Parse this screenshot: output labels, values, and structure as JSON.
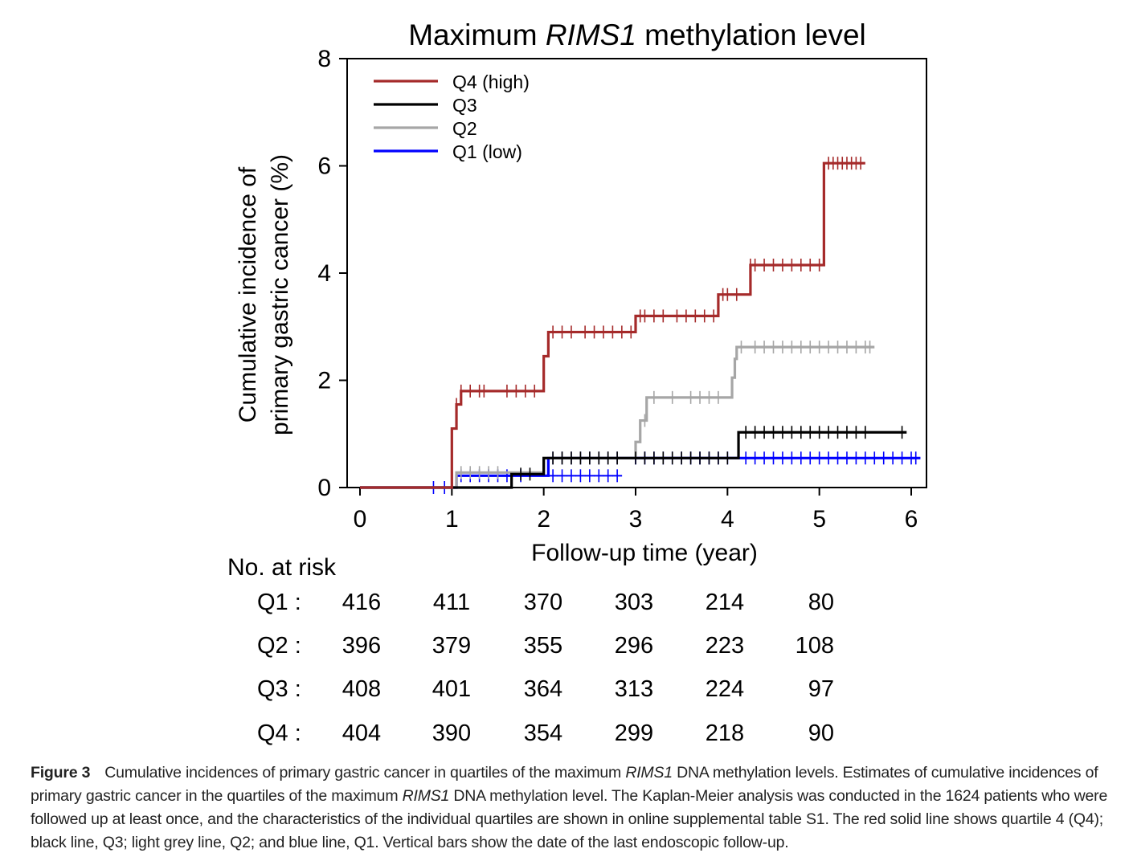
{
  "chart_data": {
    "type": "line",
    "title": {
      "prefix": "Maximum ",
      "gene": "RIMS1",
      "suffix": " methylation level"
    },
    "xlabel": "Follow-up time (year)",
    "ylabel_line1": "Cumulative incidence of",
    "ylabel_line2": "primary gastric cancer (%)",
    "xlim": [
      0,
      6
    ],
    "ylim": [
      0,
      8
    ],
    "xticks": [
      0,
      1,
      2,
      3,
      4,
      5,
      6
    ],
    "yticks": [
      0,
      2,
      4,
      6,
      8
    ],
    "grid": false,
    "legend_position": "top-left",
    "series": [
      {
        "name": "Q4 (high)",
        "color": "#a52a2a",
        "x": [
          0,
          0.95,
          1.0,
          1.05,
          1.1,
          1.95,
          2.0,
          2.05,
          2.9,
          3.0,
          3.9,
          4.25,
          5.05,
          5.5
        ],
        "y": [
          0,
          0,
          1.1,
          1.55,
          1.8,
          1.8,
          2.45,
          2.9,
          2.9,
          3.2,
          3.6,
          4.15,
          6.05,
          6.05
        ],
        "censor_x": [
          1.05,
          1.1,
          1.2,
          1.3,
          1.35,
          1.6,
          1.7,
          1.8,
          1.9,
          2.1,
          2.2,
          2.3,
          2.45,
          2.55,
          2.65,
          2.75,
          2.85,
          2.95,
          3.05,
          3.1,
          3.2,
          3.3,
          3.45,
          3.55,
          3.65,
          3.75,
          3.85,
          3.95,
          4.0,
          4.1,
          4.25,
          4.3,
          4.4,
          4.5,
          4.6,
          4.7,
          4.8,
          4.9,
          5.0,
          5.1,
          5.15,
          5.2,
          5.25,
          5.3,
          5.35,
          5.4,
          5.45
        ]
      },
      {
        "name": "Q3",
        "color": "#000000",
        "x": [
          0,
          1.62,
          1.65,
          1.95,
          2.0,
          4.1,
          4.12,
          5.95
        ],
        "y": [
          0,
          0,
          0.25,
          0.25,
          0.55,
          0.55,
          1.03,
          1.03
        ],
        "censor_x": [
          1.75,
          1.85,
          2.1,
          2.2,
          2.3,
          2.4,
          2.5,
          2.6,
          2.7,
          2.8,
          3.0,
          3.1,
          3.2,
          3.3,
          3.4,
          3.5,
          3.6,
          3.7,
          3.8,
          3.9,
          4.0,
          4.2,
          4.3,
          4.4,
          4.5,
          4.6,
          4.7,
          4.8,
          4.9,
          5.0,
          5.1,
          5.2,
          5.3,
          5.4,
          5.5,
          5.9
        ]
      },
      {
        "name": "Q2",
        "color": "#a6a6a6",
        "x": [
          0,
          1.02,
          1.05,
          1.9,
          2.0,
          2.92,
          3.0,
          3.05,
          3.12,
          4.0,
          4.05,
          4.08,
          4.1,
          5.6
        ],
        "y": [
          0,
          0,
          0.28,
          0.28,
          0.55,
          0.55,
          0.85,
          1.25,
          1.68,
          1.68,
          2.05,
          2.4,
          2.62,
          2.62
        ],
        "censor_x": [
          1.1,
          1.2,
          1.3,
          1.4,
          1.5,
          2.1,
          2.2,
          2.3,
          2.4,
          2.5,
          2.6,
          2.7,
          2.8,
          3.1,
          3.2,
          3.4,
          3.6,
          3.7,
          3.8,
          3.9,
          4.15,
          4.3,
          4.4,
          4.5,
          4.6,
          4.7,
          4.8,
          4.9,
          5.0,
          5.1,
          5.2,
          5.3,
          5.4,
          5.5,
          5.55
        ]
      },
      {
        "name": "Q1 (low)",
        "color": "#0000ff",
        "x": [
          0,
          1.0,
          1.05,
          2.0,
          2.05,
          4.1,
          4.12,
          6.1
        ],
        "y": [
          0,
          0,
          0.22,
          0.22,
          0.55,
          0.55,
          0.55,
          0.55
        ],
        "censor_x": [
          0.8,
          0.92,
          1.1,
          1.2,
          1.3,
          1.4,
          1.5,
          1.6,
          1.75,
          2.1,
          2.2,
          2.3,
          2.4,
          2.5,
          2.6,
          2.7,
          2.8,
          3.0,
          3.1,
          3.2,
          3.3,
          3.4,
          3.5,
          3.6,
          3.7,
          3.8,
          3.9,
          4.0,
          4.2,
          4.3,
          4.4,
          4.5,
          4.6,
          4.7,
          4.8,
          4.9,
          5.0,
          5.1,
          5.2,
          5.3,
          5.4,
          5.5,
          5.6,
          5.7,
          5.8,
          5.9,
          6.0,
          6.05
        ],
        "extra_censor": {
          "x": [
            2.1,
            2.2,
            2.3,
            2.4,
            2.5,
            2.6,
            2.7,
            2.8
          ],
          "y": 0.22
        }
      }
    ]
  },
  "risk_table": {
    "header": "No. at risk",
    "rows": [
      {
        "label": "Q1 :",
        "values": [
          "416",
          "411",
          "370",
          "303",
          "214",
          "80"
        ]
      },
      {
        "label": "Q2 :",
        "values": [
          "396",
          "379",
          "355",
          "296",
          "223",
          "108"
        ]
      },
      {
        "label": "Q3 :",
        "values": [
          "408",
          "401",
          "364",
          "313",
          "224",
          "97"
        ]
      },
      {
        "label": "Q4 :",
        "values": [
          "404",
          "390",
          "354",
          "299",
          "218",
          "90"
        ]
      }
    ]
  },
  "caption": {
    "label": "Figure 3",
    "parts": [
      "Cumulative incidences of primary gastric cancer in quartiles of the maximum ",
      "RIMS1",
      " DNA methylation levels. Estimates of cumulative incidences of primary gastric cancer in the quartiles of the maximum ",
      "RIMS1",
      " DNA methylation level. The Kaplan-Meier analysis was conducted in the 1624 patients who were followed up at least once, and the characteristics of the individual quartiles are shown in online supplemental table S1. The red solid line shows quartile 4 (Q4); black line, Q3; light grey line, Q2; and blue line, Q1. Vertical bars show the date of the last endoscopic follow-up."
    ]
  }
}
